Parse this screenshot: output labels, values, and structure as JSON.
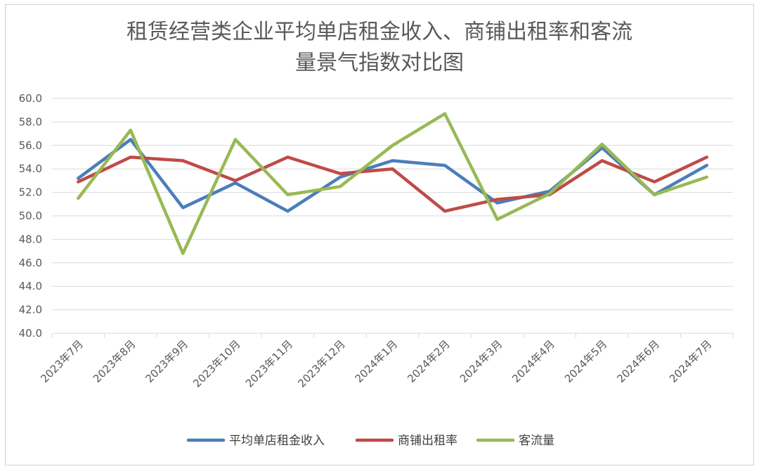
{
  "chart_data": {
    "type": "line",
    "title_lines": [
      "租赁经营类企业平均单店租金收入、商铺出租率和客流",
      "量景气指数对比图"
    ],
    "xlabel": "",
    "ylabel": "",
    "ylim": [
      40,
      60
    ],
    "y_ticks": [
      "40.0",
      "42.0",
      "44.0",
      "46.0",
      "48.0",
      "50.0",
      "52.0",
      "54.0",
      "56.0",
      "58.0",
      "60.0"
    ],
    "categories": [
      "2023年7月",
      "2023年8月",
      "2023年9月",
      "2023年10月",
      "2023年11月",
      "2023年12月",
      "2024年1月",
      "2024年2月",
      "2024年3月",
      "2024年4月",
      "2024年5月",
      "2024年6月",
      "2024年7月"
    ],
    "grid": true,
    "legend_position": "bottom",
    "series": [
      {
        "name": "平均单店租金收入",
        "color": "#4a7ebb",
        "values": [
          53.2,
          56.5,
          50.7,
          52.8,
          50.4,
          53.3,
          54.7,
          54.3,
          51.1,
          52.1,
          55.8,
          51.8,
          54.3
        ]
      },
      {
        "name": "商铺出租率",
        "color": "#be4b48",
        "values": [
          52.9,
          55.0,
          54.7,
          53.0,
          55.0,
          53.6,
          54.0,
          50.4,
          51.4,
          51.8,
          54.7,
          52.9,
          55.0
        ]
      },
      {
        "name": "客流量",
        "color": "#98b954",
        "values": [
          51.5,
          57.3,
          46.8,
          56.5,
          51.8,
          52.5,
          56.0,
          58.7,
          49.7,
          51.9,
          56.1,
          51.8,
          53.3
        ]
      }
    ]
  }
}
